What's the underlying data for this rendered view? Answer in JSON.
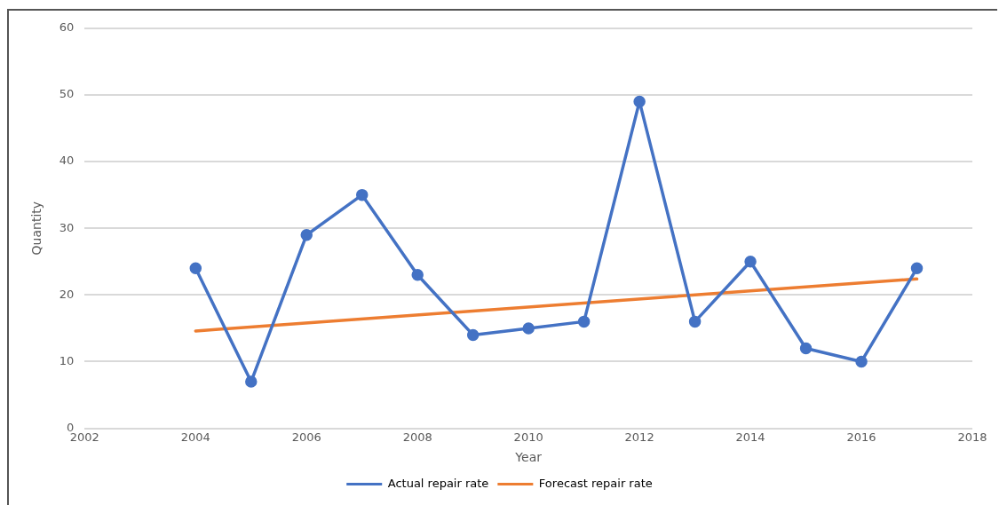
{
  "chart_data": {
    "type": "line",
    "xlabel": "Year",
    "ylabel": "Quantity",
    "x": [
      2004,
      2005,
      2006,
      2007,
      2008,
      2009,
      2010,
      2011,
      2012,
      2013,
      2014,
      2015,
      2016,
      2017
    ],
    "xlim": [
      2002,
      2018
    ],
    "xticks": [
      2002,
      2004,
      2006,
      2008,
      2010,
      2012,
      2014,
      2016,
      2018
    ],
    "ylim": [
      0,
      60
    ],
    "yticks": [
      0,
      10,
      20,
      30,
      40,
      50,
      60
    ],
    "grid": "y",
    "legend": "bottom",
    "series": [
      {
        "name": "Actual repair rate",
        "color": "#4472c4",
        "marker": "circle",
        "values": [
          24,
          7,
          29,
          35,
          23,
          14,
          15,
          16,
          49,
          16,
          25,
          12,
          10,
          24
        ]
      },
      {
        "name": "Forecast repair rate",
        "color": "#ed7d31",
        "marker": "none",
        "x": [
          2004,
          2017
        ],
        "values": [
          14.6,
          22.4
        ]
      }
    ]
  }
}
